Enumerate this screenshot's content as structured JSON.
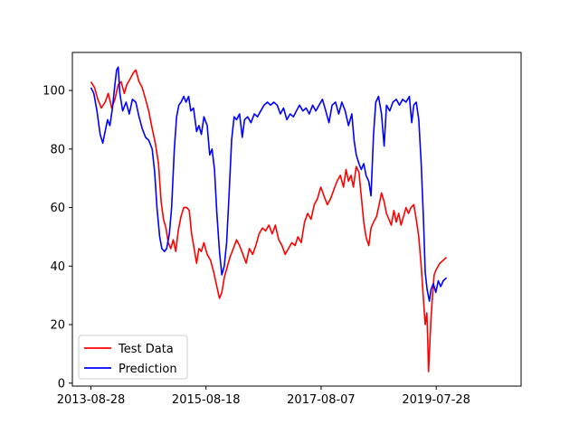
{
  "chart_data": {
    "type": "line",
    "x_ticks": [
      "2013-08-28",
      "2015-08-18",
      "2017-08-07",
      "2019-07-28"
    ],
    "x_range": [
      "2013-08-28",
      "2020-09-15"
    ],
    "ylim": [
      -1,
      113
    ],
    "y_ticks": [
      0,
      20,
      40,
      60,
      80,
      100
    ],
    "grid": false,
    "legend_position": "lower-left",
    "series": [
      {
        "name": "Test Data",
        "color": "#ff0000",
        "points": [
          [
            "2013-08-28",
            103
          ],
          [
            "2013-09-20",
            101
          ],
          [
            "2013-10-10",
            97
          ],
          [
            "2013-11-01",
            94
          ],
          [
            "2013-11-25",
            96
          ],
          [
            "2013-12-15",
            99
          ],
          [
            "2014-01-05",
            94
          ],
          [
            "2014-01-25",
            97
          ],
          [
            "2014-02-15",
            102
          ],
          [
            "2014-03-05",
            103
          ],
          [
            "2014-03-25",
            99
          ],
          [
            "2014-04-10",
            102
          ],
          [
            "2014-05-01",
            104
          ],
          [
            "2014-05-20",
            106
          ],
          [
            "2014-06-05",
            107
          ],
          [
            "2014-06-25",
            103
          ],
          [
            "2014-07-15",
            101
          ],
          [
            "2014-08-05",
            97
          ],
          [
            "2014-08-25",
            93
          ],
          [
            "2014-09-15",
            87
          ],
          [
            "2014-10-05",
            82
          ],
          [
            "2014-10-25",
            75
          ],
          [
            "2014-11-10",
            62
          ],
          [
            "2014-11-25",
            56
          ],
          [
            "2014-12-10",
            53
          ],
          [
            "2014-12-25",
            48
          ],
          [
            "2015-01-10",
            46
          ],
          [
            "2015-01-25",
            49
          ],
          [
            "2015-02-10",
            45
          ],
          [
            "2015-02-25",
            52
          ],
          [
            "2015-03-15",
            57
          ],
          [
            "2015-04-01",
            60
          ],
          [
            "2015-04-20",
            60
          ],
          [
            "2015-05-05",
            59
          ],
          [
            "2015-05-20",
            51
          ],
          [
            "2015-06-05",
            46
          ],
          [
            "2015-06-20",
            41
          ],
          [
            "2015-07-05",
            46
          ],
          [
            "2015-07-20",
            45
          ],
          [
            "2015-08-05",
            48
          ],
          [
            "2015-08-25",
            44
          ],
          [
            "2015-09-15",
            42
          ],
          [
            "2015-10-05",
            38
          ],
          [
            "2015-10-25",
            33
          ],
          [
            "2015-11-10",
            29
          ],
          [
            "2015-11-25",
            31
          ],
          [
            "2015-12-10",
            36
          ],
          [
            "2015-12-25",
            39
          ],
          [
            "2016-01-15",
            43
          ],
          [
            "2016-02-05",
            46
          ],
          [
            "2016-02-25",
            49
          ],
          [
            "2016-03-15",
            47
          ],
          [
            "2016-04-05",
            44
          ],
          [
            "2016-04-25",
            41
          ],
          [
            "2016-05-15",
            46
          ],
          [
            "2016-06-05",
            44
          ],
          [
            "2016-06-25",
            47
          ],
          [
            "2016-07-15",
            51
          ],
          [
            "2016-08-05",
            53
          ],
          [
            "2016-08-25",
            52
          ],
          [
            "2016-09-15",
            54
          ],
          [
            "2016-10-05",
            51
          ],
          [
            "2016-10-25",
            54
          ],
          [
            "2016-11-15",
            49
          ],
          [
            "2016-12-05",
            47
          ],
          [
            "2016-12-25",
            44
          ],
          [
            "2017-01-15",
            46
          ],
          [
            "2017-02-05",
            48
          ],
          [
            "2017-02-25",
            47
          ],
          [
            "2017-03-15",
            50
          ],
          [
            "2017-04-05",
            48
          ],
          [
            "2017-04-25",
            55
          ],
          [
            "2017-05-15",
            58
          ],
          [
            "2017-06-05",
            56
          ],
          [
            "2017-06-25",
            61
          ],
          [
            "2017-07-15",
            63
          ],
          [
            "2017-08-05",
            67
          ],
          [
            "2017-08-25",
            64
          ],
          [
            "2017-09-15",
            61
          ],
          [
            "2017-10-05",
            63
          ],
          [
            "2017-10-25",
            66
          ],
          [
            "2017-11-15",
            69
          ],
          [
            "2017-12-05",
            71
          ],
          [
            "2017-12-25",
            67
          ],
          [
            "2018-01-10",
            73
          ],
          [
            "2018-01-25",
            69
          ],
          [
            "2018-02-10",
            71
          ],
          [
            "2018-02-25",
            67
          ],
          [
            "2018-03-15",
            74
          ],
          [
            "2018-04-01",
            72
          ],
          [
            "2018-04-15",
            64
          ],
          [
            "2018-05-01",
            55
          ],
          [
            "2018-05-15",
            50
          ],
          [
            "2018-06-01",
            47
          ],
          [
            "2018-06-15",
            53
          ],
          [
            "2018-07-01",
            55
          ],
          [
            "2018-07-20",
            57
          ],
          [
            "2018-08-05",
            61
          ],
          [
            "2018-08-20",
            65
          ],
          [
            "2018-09-05",
            62
          ],
          [
            "2018-09-20",
            58
          ],
          [
            "2018-10-05",
            56
          ],
          [
            "2018-10-20",
            54
          ],
          [
            "2018-11-05",
            59
          ],
          [
            "2018-11-20",
            55
          ],
          [
            "2018-12-05",
            58
          ],
          [
            "2018-12-20",
            54
          ],
          [
            "2019-01-05",
            57
          ],
          [
            "2019-01-20",
            60
          ],
          [
            "2019-02-05",
            58
          ],
          [
            "2019-02-20",
            60
          ],
          [
            "2019-03-10",
            61
          ],
          [
            "2019-03-25",
            56
          ],
          [
            "2019-04-10",
            50
          ],
          [
            "2019-04-25",
            40
          ],
          [
            "2019-05-10",
            28
          ],
          [
            "2019-05-20",
            20
          ],
          [
            "2019-05-30",
            24
          ],
          [
            "2019-06-05",
            15
          ],
          [
            "2019-06-10",
            4
          ],
          [
            "2019-06-15",
            10
          ],
          [
            "2019-06-25",
            22
          ],
          [
            "2019-07-05",
            30
          ],
          [
            "2019-07-15",
            37
          ],
          [
            "2019-07-30",
            39
          ],
          [
            "2019-08-20",
            41
          ],
          [
            "2019-09-10",
            42
          ],
          [
            "2019-09-30",
            43
          ]
        ]
      },
      {
        "name": "Prediction",
        "color": "#0000ff",
        "points": [
          [
            "2013-08-28",
            101
          ],
          [
            "2013-09-15",
            99
          ],
          [
            "2013-10-05",
            93
          ],
          [
            "2013-10-25",
            85
          ],
          [
            "2013-11-10",
            82
          ],
          [
            "2013-11-25",
            86
          ],
          [
            "2013-12-10",
            90
          ],
          [
            "2013-12-25",
            88
          ],
          [
            "2014-01-10",
            94
          ],
          [
            "2014-01-25",
            102
          ],
          [
            "2014-02-05",
            107
          ],
          [
            "2014-02-15",
            108
          ],
          [
            "2014-02-25",
            99
          ],
          [
            "2014-03-15",
            93
          ],
          [
            "2014-04-05",
            96
          ],
          [
            "2014-04-25",
            92
          ],
          [
            "2014-05-15",
            97
          ],
          [
            "2014-06-05",
            96
          ],
          [
            "2014-06-25",
            91
          ],
          [
            "2014-07-15",
            87
          ],
          [
            "2014-08-05",
            84
          ],
          [
            "2014-08-25",
            83
          ],
          [
            "2014-09-15",
            80
          ],
          [
            "2014-10-01",
            72
          ],
          [
            "2014-10-15",
            60
          ],
          [
            "2014-11-01",
            50
          ],
          [
            "2014-11-15",
            46
          ],
          [
            "2014-12-01",
            45
          ],
          [
            "2014-12-15",
            46
          ],
          [
            "2015-01-01",
            51
          ],
          [
            "2015-01-15",
            60
          ],
          [
            "2015-02-01",
            80
          ],
          [
            "2015-02-15",
            91
          ],
          [
            "2015-03-01",
            95
          ],
          [
            "2015-03-15",
            96
          ],
          [
            "2015-04-01",
            98
          ],
          [
            "2015-04-15",
            96
          ],
          [
            "2015-05-01",
            98
          ],
          [
            "2015-05-15",
            93
          ],
          [
            "2015-06-01",
            94
          ],
          [
            "2015-06-20",
            86
          ],
          [
            "2015-07-05",
            88
          ],
          [
            "2015-07-20",
            85
          ],
          [
            "2015-08-05",
            91
          ],
          [
            "2015-08-25",
            88
          ],
          [
            "2015-09-10",
            78
          ],
          [
            "2015-09-25",
            80
          ],
          [
            "2015-10-10",
            73
          ],
          [
            "2015-10-25",
            58
          ],
          [
            "2015-11-10",
            45
          ],
          [
            "2015-11-25",
            37
          ],
          [
            "2015-12-10",
            40
          ],
          [
            "2015-12-25",
            48
          ],
          [
            "2016-01-10",
            65
          ],
          [
            "2016-01-25",
            83
          ],
          [
            "2016-02-10",
            91
          ],
          [
            "2016-02-25",
            90
          ],
          [
            "2016-03-15",
            92
          ],
          [
            "2016-04-01",
            84
          ],
          [
            "2016-04-15",
            90
          ],
          [
            "2016-05-05",
            91
          ],
          [
            "2016-05-25",
            89
          ],
          [
            "2016-06-15",
            92
          ],
          [
            "2016-07-05",
            91
          ],
          [
            "2016-07-25",
            93
          ],
          [
            "2016-08-15",
            95
          ],
          [
            "2016-09-05",
            96
          ],
          [
            "2016-09-25",
            95
          ],
          [
            "2016-10-15",
            96
          ],
          [
            "2016-11-05",
            95
          ],
          [
            "2016-11-25",
            92
          ],
          [
            "2016-12-15",
            94
          ],
          [
            "2017-01-05",
            90
          ],
          [
            "2017-01-25",
            92
          ],
          [
            "2017-02-15",
            91
          ],
          [
            "2017-03-05",
            93
          ],
          [
            "2017-03-25",
            95
          ],
          [
            "2017-04-15",
            93
          ],
          [
            "2017-05-05",
            94
          ],
          [
            "2017-05-25",
            92
          ],
          [
            "2017-06-15",
            95
          ],
          [
            "2017-07-05",
            93
          ],
          [
            "2017-07-25",
            95
          ],
          [
            "2017-08-15",
            97
          ],
          [
            "2017-09-05",
            93
          ],
          [
            "2017-09-25",
            89
          ],
          [
            "2017-10-15",
            95
          ],
          [
            "2017-11-05",
            96
          ],
          [
            "2017-11-25",
            92
          ],
          [
            "2017-12-15",
            96
          ],
          [
            "2018-01-05",
            93
          ],
          [
            "2018-01-25",
            88
          ],
          [
            "2018-02-15",
            92
          ],
          [
            "2018-03-01",
            83
          ],
          [
            "2018-03-15",
            78
          ],
          [
            "2018-04-01",
            75
          ],
          [
            "2018-04-15",
            73
          ],
          [
            "2018-05-01",
            75
          ],
          [
            "2018-05-15",
            71
          ],
          [
            "2018-06-01",
            69
          ],
          [
            "2018-06-15",
            64
          ],
          [
            "2018-07-01",
            85
          ],
          [
            "2018-07-15",
            96
          ],
          [
            "2018-08-01",
            98
          ],
          [
            "2018-08-20",
            92
          ],
          [
            "2018-09-05",
            81
          ],
          [
            "2018-09-20",
            95
          ],
          [
            "2018-10-10",
            93
          ],
          [
            "2018-10-30",
            96
          ],
          [
            "2018-11-20",
            97
          ],
          [
            "2018-12-10",
            95
          ],
          [
            "2018-12-30",
            97
          ],
          [
            "2019-01-20",
            96
          ],
          [
            "2019-02-10",
            98
          ],
          [
            "2019-02-25",
            89
          ],
          [
            "2019-03-10",
            95
          ],
          [
            "2019-03-25",
            96
          ],
          [
            "2019-04-10",
            90
          ],
          [
            "2019-04-25",
            75
          ],
          [
            "2019-05-10",
            55
          ],
          [
            "2019-05-20",
            38
          ],
          [
            "2019-06-01",
            32
          ],
          [
            "2019-06-15",
            28
          ],
          [
            "2019-06-25",
            32
          ],
          [
            "2019-07-10",
            34
          ],
          [
            "2019-07-25",
            31
          ],
          [
            "2019-08-10",
            35
          ],
          [
            "2019-08-25",
            33
          ],
          [
            "2019-09-10",
            35
          ],
          [
            "2019-09-30",
            36
          ]
        ]
      }
    ]
  }
}
